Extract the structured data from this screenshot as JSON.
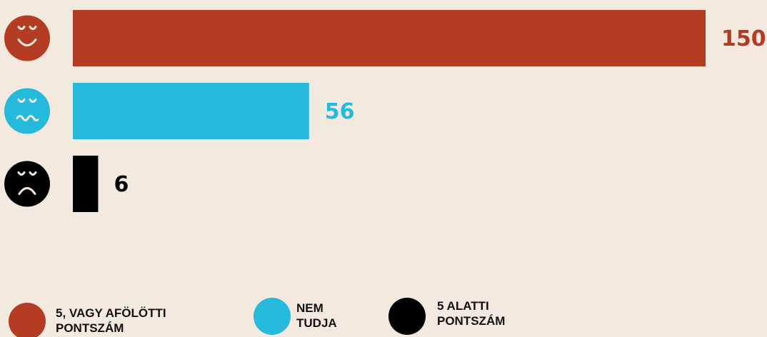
{
  "chart_data": {
    "type": "bar",
    "categories": [
      "5, VAGY AFÖLÖTTI PONTSZÁM",
      "NEM TUDJA",
      "5 ALATTI PONTSZÁM"
    ],
    "values": [
      150,
      56,
      6
    ],
    "colors": [
      "#b33c22",
      "#25b9dc",
      "#000000"
    ]
  }
}
